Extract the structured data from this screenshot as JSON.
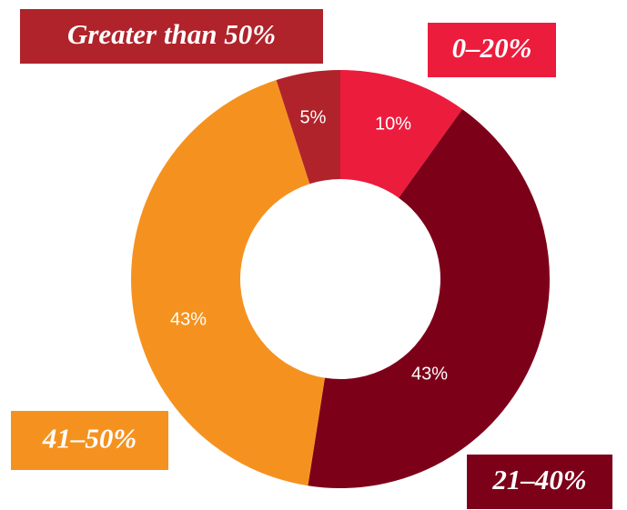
{
  "chart_data": {
    "type": "pie",
    "categories": [
      "0–20%",
      "21–40%",
      "41–50%",
      "Greater than 50%"
    ],
    "values": [
      10,
      43,
      43,
      5
    ],
    "value_labels": [
      "10%",
      "43%",
      "43%",
      "5%"
    ],
    "colors": [
      "#ec1c3d",
      "#7d0019",
      "#f5921f",
      "#b0232b"
    ],
    "donut": true
  }
}
